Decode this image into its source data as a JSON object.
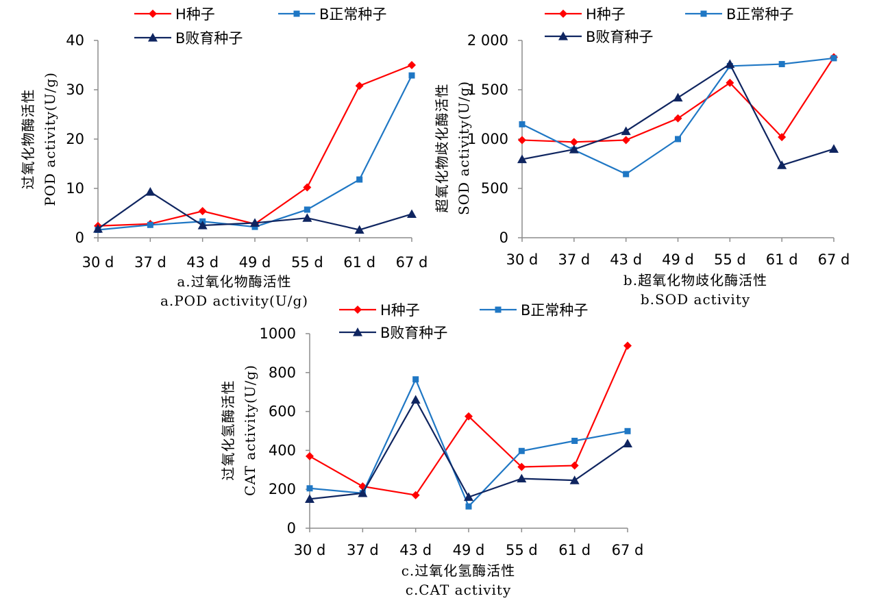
{
  "chart_data": [
    {
      "type": "line",
      "categories": [
        "30 d",
        "37 d",
        "43 d",
        "49 d",
        "55 d",
        "61 d",
        "67 d"
      ],
      "series": [
        {
          "name": "H种子",
          "values": [
            2.4,
            2.8,
            5.4,
            2.8,
            10.2,
            30.8,
            35.0
          ]
        },
        {
          "name": "B正常种子",
          "values": [
            1.6,
            2.6,
            3.3,
            2.2,
            5.7,
            11.8,
            32.9
          ]
        },
        {
          "name": "B败育种子",
          "values": [
            1.8,
            9.3,
            2.5,
            3.0,
            4.0,
            1.6,
            4.8
          ]
        }
      ],
      "ylabel": [
        "过氧化物酶活性",
        "POD activity(U/g)"
      ],
      "caption": [
        "a.过氧化物酶活性",
        "a.POD activity(U/g)"
      ],
      "yticks": [
        "0",
        "10",
        "20",
        "30",
        "40"
      ],
      "ylim": [
        0,
        40
      ],
      "legend": "top"
    },
    {
      "type": "line",
      "categories": [
        "30 d",
        "37 d",
        "43 d",
        "49 d",
        "55 d",
        "61 d",
        "67 d"
      ],
      "series": [
        {
          "name": "H种子",
          "values": [
            990,
            970,
            990,
            1210,
            1570,
            1020,
            1830
          ]
        },
        {
          "name": "B正常种子",
          "values": [
            1150,
            890,
            645,
            1000,
            1740,
            1760,
            1820
          ]
        },
        {
          "name": "B败育种子",
          "values": [
            795,
            895,
            1080,
            1420,
            1760,
            735,
            900
          ]
        }
      ],
      "ylabel": [
        "超氧化物歧化酶活性",
        "SOD activity(U/g)"
      ],
      "caption": [
        "b.超氧化物歧化酶活性",
        "b.SOD activity"
      ],
      "yticks": [
        "0",
        "500",
        "1 000",
        "1 500",
        "2 000"
      ],
      "ylim": [
        0,
        2000
      ],
      "legend": "top"
    },
    {
      "type": "line",
      "categories": [
        "30 d",
        "37 d",
        "43 d",
        "49 d",
        "55 d",
        "61 d",
        "67 d"
      ],
      "series": [
        {
          "name": "H种子",
          "values": [
            370,
            215,
            170,
            575,
            315,
            322,
            938
          ]
        },
        {
          "name": "B正常种子",
          "values": [
            205,
            180,
            765,
            112,
            397,
            449,
            499
          ]
        },
        {
          "name": "B败育种子",
          "values": [
            150,
            180,
            660,
            160,
            255,
            246,
            435
          ]
        }
      ],
      "ylabel": [
        "过氧化氢酶活性",
        "CAT activity(U/g)"
      ],
      "caption": [
        "c.过氧化氢酶活性",
        "c.CAT activity"
      ],
      "yticks": [
        "0",
        "200",
        "400",
        "600",
        "800",
        "1000"
      ],
      "ylim": [
        0,
        1000
      ],
      "legend": "top"
    }
  ],
  "colors": {
    "H": "#ff0000",
    "B_normal": "#1f77c4",
    "B_abort": "#0f2560",
    "axis": "#8c8c8c"
  },
  "markers": [
    "diamond",
    "square",
    "triangle"
  ]
}
